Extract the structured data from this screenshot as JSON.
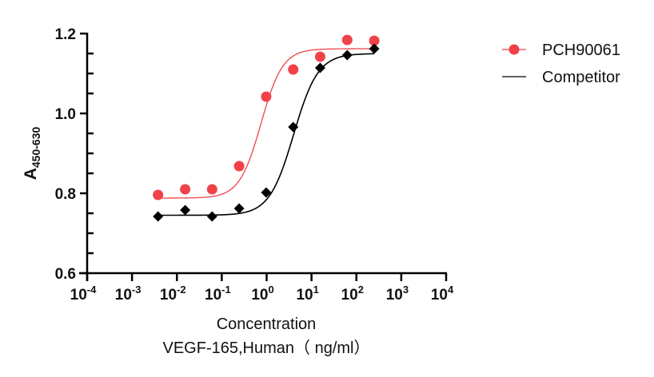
{
  "chart_data": {
    "type": "scatter",
    "title": "",
    "xlabel": "Concentration",
    "xlabel_line2": "VEGF-165,Human（ ng/ml）",
    "ylabel": "A",
    "ylabel_subscript": "450-630",
    "xscale": "log",
    "xlim": [
      0.0001,
      10000
    ],
    "ylim": [
      0.6,
      1.2
    ],
    "grid": false,
    "x_ticks": [
      {
        "exp": "-4",
        "base": "10",
        "value": 0.0001
      },
      {
        "exp": "-3",
        "base": "10",
        "value": 0.001
      },
      {
        "exp": "-2",
        "base": "10",
        "value": 0.01
      },
      {
        "exp": "-1",
        "base": "10",
        "value": 0.1
      },
      {
        "exp": "0",
        "base": "10",
        "value": 1
      },
      {
        "exp": "1",
        "base": "10",
        "value": 10
      },
      {
        "exp": "2",
        "base": "10",
        "value": 100
      },
      {
        "exp": "3",
        "base": "10",
        "value": 1000
      },
      {
        "exp": "4",
        "base": "10",
        "value": 10000
      }
    ],
    "y_ticks": [
      "0.6",
      "0.8",
      "1.0",
      "1.2"
    ],
    "y_tick_values": [
      0.6,
      0.8,
      1.0,
      1.2
    ],
    "y_minor_step": 0.05,
    "legend_position": "top-right",
    "series": [
      {
        "name": "PCH90061",
        "color": "#f04248",
        "marker": "circle",
        "x": [
          0.0038,
          0.0153,
          0.061,
          0.244,
          0.977,
          3.91,
          15.6,
          62.5,
          250
        ],
        "y": [
          0.796,
          0.81,
          0.81,
          0.868,
          1.042,
          1.11,
          1.142,
          1.184,
          1.182
        ],
        "fit": {
          "bottom": 0.788,
          "top": 1.162,
          "ec50": 0.75,
          "hill": 1.8
        }
      },
      {
        "name": "Competitor",
        "color": "#000000",
        "marker": "diamond",
        "x": [
          0.0038,
          0.0153,
          0.061,
          0.244,
          0.977,
          3.91,
          15.6,
          62.5,
          250
        ],
        "y": [
          0.742,
          0.758,
          0.742,
          0.762,
          0.802,
          0.966,
          1.114,
          1.146,
          1.162
        ],
        "fit": {
          "bottom": 0.745,
          "top": 1.15,
          "ec50": 4.0,
          "hill": 1.6
        }
      }
    ]
  }
}
